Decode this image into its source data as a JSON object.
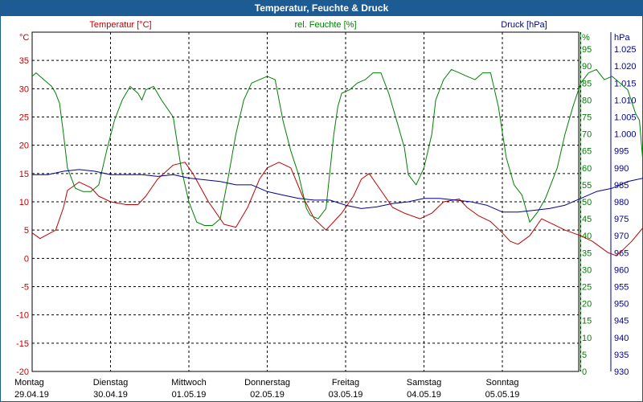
{
  "window": {
    "title": "Temperatur, Feuchte & Druck"
  },
  "colors": {
    "temperature": "#c00000",
    "humidity": "#008000",
    "pressure": "#000090",
    "grid": "#000000",
    "titlebar": "#1d5b95"
  },
  "chart_data": {
    "type": "line",
    "title": "Temperatur, Feuchte & Druck",
    "grid": true,
    "x_days": [
      {
        "day": "Montag",
        "date": "29.04.19"
      },
      {
        "day": "Dienstag",
        "date": "30.04.19"
      },
      {
        "day": "Mittwoch",
        "date": "01.05.19"
      },
      {
        "day": "Donnerstag",
        "date": "02.05.19"
      },
      {
        "day": "Freitag",
        "date": "03.05.19"
      },
      {
        "day": "Samstag",
        "date": "04.05.19"
      },
      {
        "day": "Sonntag",
        "date": "05.05.19"
      }
    ],
    "axes": {
      "temperature": {
        "label": "Temperatur [°C]",
        "unit": "°C",
        "min": -20,
        "max": 40,
        "ticks": [
          "35",
          "30",
          "25",
          "20",
          "15",
          "10",
          "5",
          "0",
          "-5",
          "-10",
          "-15",
          "-20"
        ]
      },
      "humidity": {
        "label": "rel. Feuchte [%]",
        "unit": "%",
        "min": 0,
        "max": 100,
        "ticks": [
          "95",
          "90",
          "85",
          "80",
          "75",
          "70",
          "65",
          "60",
          "55",
          "50",
          "45",
          "40",
          "35",
          "30",
          "25",
          "20",
          "15",
          "10",
          "5",
          "0"
        ]
      },
      "pressure": {
        "label": "Druck [hPa]",
        "unit": "hPa",
        "min": 930,
        "max": 1030,
        "ticks": [
          "1.025",
          "1.020",
          "1.015",
          "1.010",
          "1.005",
          "1.000",
          "995",
          "990",
          "985",
          "980",
          "975",
          "970",
          "965",
          "960",
          "955",
          "950",
          "945",
          "940",
          "935",
          "930"
        ]
      }
    },
    "series": [
      {
        "name": "Temperatur [°C]",
        "axis": "temperature",
        "points": [
          [
            0,
            4.5
          ],
          [
            0.1,
            3.5
          ],
          [
            0.3,
            5
          ],
          [
            0.4,
            9
          ],
          [
            0.45,
            12
          ],
          [
            0.6,
            13.5
          ],
          [
            0.75,
            12.5
          ],
          [
            0.85,
            11
          ],
          [
            1.0,
            10
          ],
          [
            1.2,
            9.5
          ],
          [
            1.35,
            9.5
          ],
          [
            1.45,
            11
          ],
          [
            1.6,
            14
          ],
          [
            1.8,
            16.5
          ],
          [
            1.95,
            17
          ],
          [
            2.05,
            15
          ],
          [
            2.25,
            10
          ],
          [
            2.45,
            6
          ],
          [
            2.6,
            5.5
          ],
          [
            2.75,
            9
          ],
          [
            2.9,
            14
          ],
          [
            3.0,
            16
          ],
          [
            3.15,
            17
          ],
          [
            3.3,
            16
          ],
          [
            3.45,
            11
          ],
          [
            3.6,
            7
          ],
          [
            3.75,
            5
          ],
          [
            3.95,
            8
          ],
          [
            4.1,
            11
          ],
          [
            4.2,
            14
          ],
          [
            4.3,
            15
          ],
          [
            4.45,
            12
          ],
          [
            4.6,
            9
          ],
          [
            4.75,
            8
          ],
          [
            4.95,
            7
          ],
          [
            5.1,
            8
          ],
          [
            5.25,
            10
          ],
          [
            5.45,
            10.5
          ],
          [
            5.55,
            9
          ],
          [
            5.7,
            7.5
          ],
          [
            5.85,
            6.5
          ],
          [
            6.0,
            4.5
          ],
          [
            6.1,
            3
          ],
          [
            6.2,
            2.5
          ],
          [
            6.35,
            4
          ],
          [
            6.5,
            7
          ],
          [
            6.65,
            6
          ],
          [
            6.8,
            5
          ],
          [
            7.0,
            4
          ],
          [
            7.15,
            3
          ],
          [
            7.25,
            2
          ],
          [
            7.35,
            1
          ],
          [
            7.45,
            0.5
          ],
          [
            7.5,
            1
          ],
          [
            7.65,
            3
          ],
          [
            7.8,
            5.5
          ],
          [
            7.95,
            7.5
          ],
          [
            8.05,
            8.5
          ],
          [
            8.2,
            8
          ],
          [
            8.35,
            6.5
          ],
          [
            8.45,
            5
          ],
          [
            8.5,
            4.8
          ]
        ]
      },
      {
        "name": "rel. Feuchte [%]",
        "axis": "humidity",
        "points": [
          [
            0,
            87
          ],
          [
            0.05,
            88
          ],
          [
            0.15,
            86
          ],
          [
            0.25,
            84
          ],
          [
            0.3,
            82
          ],
          [
            0.35,
            79
          ],
          [
            0.4,
            70
          ],
          [
            0.45,
            60
          ],
          [
            0.55,
            54
          ],
          [
            0.65,
            53
          ],
          [
            0.75,
            53
          ],
          [
            0.85,
            55
          ],
          [
            0.95,
            65
          ],
          [
            1.05,
            74
          ],
          [
            1.15,
            80
          ],
          [
            1.25,
            84
          ],
          [
            1.35,
            82
          ],
          [
            1.4,
            80
          ],
          [
            1.45,
            83
          ],
          [
            1.55,
            84
          ],
          [
            1.65,
            80
          ],
          [
            1.8,
            75
          ],
          [
            1.9,
            60
          ],
          [
            2.0,
            50
          ],
          [
            2.1,
            44
          ],
          [
            2.2,
            43
          ],
          [
            2.3,
            43
          ],
          [
            2.4,
            45
          ],
          [
            2.5,
            57
          ],
          [
            2.6,
            70
          ],
          [
            2.7,
            80
          ],
          [
            2.8,
            85
          ],
          [
            2.9,
            86
          ],
          [
            3.0,
            87
          ],
          [
            3.1,
            86
          ],
          [
            3.2,
            74
          ],
          [
            3.3,
            65
          ],
          [
            3.4,
            58
          ],
          [
            3.5,
            48
          ],
          [
            3.55,
            46
          ],
          [
            3.65,
            45
          ],
          [
            3.75,
            48
          ],
          [
            3.85,
            70
          ],
          [
            3.9,
            78
          ],
          [
            3.95,
            82
          ],
          [
            4.05,
            83
          ],
          [
            4.15,
            85
          ],
          [
            4.25,
            86
          ],
          [
            4.35,
            88
          ],
          [
            4.45,
            88
          ],
          [
            4.55,
            82
          ],
          [
            4.65,
            74
          ],
          [
            4.75,
            66
          ],
          [
            4.8,
            58
          ],
          [
            4.9,
            55
          ],
          [
            5.0,
            60
          ],
          [
            5.1,
            70
          ],
          [
            5.15,
            80
          ],
          [
            5.25,
            86
          ],
          [
            5.35,
            89
          ],
          [
            5.45,
            88
          ],
          [
            5.55,
            87
          ],
          [
            5.65,
            86
          ],
          [
            5.75,
            88
          ],
          [
            5.85,
            88
          ],
          [
            5.95,
            78
          ],
          [
            6.05,
            63
          ],
          [
            6.15,
            55
          ],
          [
            6.25,
            52
          ],
          [
            6.35,
            44
          ],
          [
            6.45,
            47
          ],
          [
            6.55,
            51
          ],
          [
            6.7,
            60
          ],
          [
            6.8,
            70
          ],
          [
            6.9,
            78
          ],
          [
            7.0,
            85
          ],
          [
            7.1,
            88
          ],
          [
            7.2,
            89
          ],
          [
            7.3,
            86
          ],
          [
            7.4,
            87
          ],
          [
            7.5,
            85
          ],
          [
            7.6,
            83
          ],
          [
            7.7,
            76
          ],
          [
            7.75,
            74
          ],
          [
            7.8,
            60
          ],
          [
            7.85,
            65
          ],
          [
            7.9,
            68
          ],
          [
            8.0,
            76
          ],
          [
            8.1,
            83
          ],
          [
            8.2,
            86
          ],
          [
            8.3,
            83
          ],
          [
            8.4,
            80
          ],
          [
            8.5,
            80
          ],
          [
            8.6,
            81
          ],
          [
            8.7,
            83
          ],
          [
            8.75,
            86
          ],
          [
            8.85,
            84
          ],
          [
            8.95,
            85
          ],
          [
            9.05,
            84
          ],
          [
            9.15,
            79
          ],
          [
            9.25,
            80
          ],
          [
            9.35,
            66
          ],
          [
            9.45,
            60
          ],
          [
            9.5,
            57
          ],
          [
            9.55,
            62
          ],
          [
            9.6,
            69
          ],
          [
            9.65,
            72
          ],
          [
            9.7,
            70
          ],
          [
            9.8,
            80
          ],
          [
            9.85,
            82
          ],
          [
            9.9,
            80
          ]
        ]
      },
      {
        "name": "Druck [hPa]",
        "axis": "pressure",
        "points": [
          [
            0,
            988
          ],
          [
            0.2,
            988
          ],
          [
            0.4,
            989
          ],
          [
            0.6,
            989.5
          ],
          [
            0.8,
            989
          ],
          [
            1.0,
            988
          ],
          [
            1.2,
            988
          ],
          [
            1.4,
            988
          ],
          [
            1.6,
            987.5
          ],
          [
            1.8,
            988
          ],
          [
            2.0,
            987
          ],
          [
            2.2,
            986.5
          ],
          [
            2.4,
            986
          ],
          [
            2.6,
            985
          ],
          [
            2.8,
            985
          ],
          [
            3.0,
            983
          ],
          [
            3.2,
            982
          ],
          [
            3.4,
            981
          ],
          [
            3.6,
            980.5
          ],
          [
            3.8,
            980.5
          ],
          [
            4.0,
            979
          ],
          [
            4.2,
            978
          ],
          [
            4.4,
            978.5
          ],
          [
            4.6,
            979.5
          ],
          [
            4.8,
            980
          ],
          [
            5.0,
            981
          ],
          [
            5.2,
            981
          ],
          [
            5.4,
            980.5
          ],
          [
            5.6,
            980
          ],
          [
            5.8,
            979
          ],
          [
            6.0,
            977
          ],
          [
            6.2,
            977
          ],
          [
            6.4,
            977.5
          ],
          [
            6.6,
            978
          ],
          [
            6.8,
            979
          ],
          [
            7.0,
            981
          ],
          [
            7.2,
            983
          ],
          [
            7.4,
            984
          ],
          [
            7.6,
            986
          ],
          [
            7.8,
            987
          ],
          [
            8.0,
            987
          ],
          [
            8.2,
            987.5
          ],
          [
            8.4,
            988
          ],
          [
            8.6,
            988
          ]
        ]
      }
    ]
  }
}
